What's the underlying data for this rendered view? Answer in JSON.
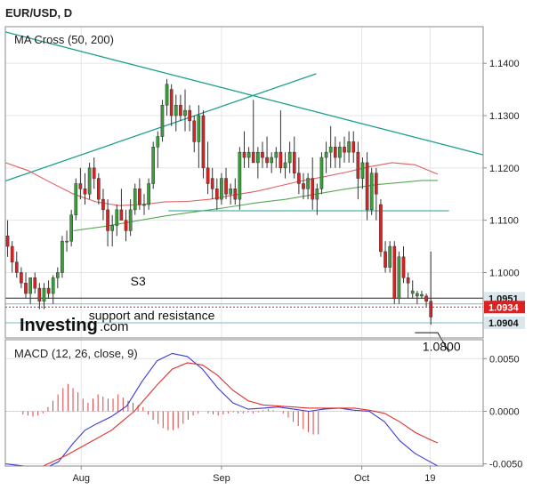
{
  "header": {
    "title": "EUR/USD, D"
  },
  "brand": {
    "name": "Investing",
    "suffix": ".com"
  },
  "colors": {
    "up": "#3a9e3a",
    "down": "#dd2020",
    "ma50": "#e06060",
    "ma200": "#55a855",
    "trend": "#20a090",
    "macd": "#3b3bd6",
    "signal": "#e03030",
    "hist": "#e04040"
  },
  "chart_data": [
    {
      "type": "candlestick",
      "title": "MA Cross (50, 200)",
      "ylim": [
        1.0875,
        1.147
      ],
      "yticks": [
        "1.1400",
        "1.1300",
        "1.1200",
        "1.1100",
        "1.1000"
      ],
      "xlim": [
        0,
        126
      ],
      "xticks": [
        {
          "label": "Aug",
          "x": 20
        },
        {
          "label": "Sep",
          "x": 57
        },
        {
          "label": "Oct",
          "x": 94
        },
        {
          "label": "19",
          "x": 112
        }
      ],
      "grid": true,
      "candles": [
        [
          1.107,
          1.11,
          1.103,
          1.105
        ],
        [
          1.105,
          1.106,
          1.1,
          1.102
        ],
        [
          1.102,
          1.104,
          1.099,
          1.1
        ],
        [
          1.1,
          1.101,
          1.097,
          1.098
        ],
        [
          1.098,
          1.1,
          1.095,
          1.096
        ],
        [
          1.096,
          1.099,
          1.094,
          1.099
        ],
        [
          1.099,
          1.1,
          1.096,
          1.097
        ],
        [
          1.097,
          1.098,
          1.093,
          1.0945
        ],
        [
          1.0945,
          1.098,
          1.093,
          1.097
        ],
        [
          1.097,
          1.0985,
          1.095,
          1.096
        ],
        [
          1.096,
          1.0995,
          1.094,
          1.099
        ],
        [
          1.099,
          1.101,
          1.097,
          1.1
        ],
        [
          1.1,
          1.107,
          1.099,
          1.106
        ],
        [
          1.106,
          1.108,
          1.104,
          1.106
        ],
        [
          1.106,
          1.112,
          1.105,
          1.111
        ],
        [
          1.111,
          1.118,
          1.11,
          1.117
        ],
        [
          1.117,
          1.12,
          1.114,
          1.116
        ],
        [
          1.116,
          1.119,
          1.113,
          1.115
        ],
        [
          1.115,
          1.121,
          1.114,
          1.12
        ],
        [
          1.12,
          1.122,
          1.116,
          1.118
        ],
        [
          1.118,
          1.119,
          1.113,
          1.114
        ],
        [
          1.114,
          1.116,
          1.11,
          1.112
        ],
        [
          1.112,
          1.114,
          1.105,
          1.108
        ],
        [
          1.108,
          1.111,
          1.105,
          1.109
        ],
        [
          1.109,
          1.113,
          1.107,
          1.112
        ],
        [
          1.112,
          1.116,
          1.11,
          1.11
        ],
        [
          1.11,
          1.112,
          1.106,
          1.108
        ],
        [
          1.108,
          1.114,
          1.107,
          1.112
        ],
        [
          1.112,
          1.117,
          1.111,
          1.116
        ],
        [
          1.116,
          1.118,
          1.112,
          1.113
        ],
        [
          1.113,
          1.115,
          1.111,
          1.113
        ],
        [
          1.113,
          1.118,
          1.112,
          1.117
        ],
        [
          1.117,
          1.125,
          1.116,
          1.124
        ],
        [
          1.124,
          1.127,
          1.12,
          1.126
        ],
        [
          1.126,
          1.133,
          1.125,
          1.132
        ],
        [
          1.132,
          1.137,
          1.13,
          1.136
        ],
        [
          1.135,
          1.136,
          1.128,
          1.13
        ],
        [
          1.13,
          1.134,
          1.127,
          1.132
        ],
        [
          1.132,
          1.134,
          1.129,
          1.13
        ],
        [
          1.13,
          1.135,
          1.127,
          1.131
        ],
        [
          1.131,
          1.132,
          1.127,
          1.129
        ],
        [
          1.129,
          1.13,
          1.123,
          1.125
        ],
        [
          1.125,
          1.132,
          1.12,
          1.13
        ],
        [
          1.13,
          1.131,
          1.118,
          1.12
        ],
        [
          1.12,
          1.125,
          1.115,
          1.117
        ],
        [
          1.118,
          1.12,
          1.114,
          1.116
        ],
        [
          1.116,
          1.118,
          1.112,
          1.114
        ],
        [
          1.114,
          1.119,
          1.113,
          1.118
        ],
        [
          1.118,
          1.12,
          1.114,
          1.115
        ],
        [
          1.115,
          1.117,
          1.113,
          1.116
        ],
        [
          1.116,
          1.118,
          1.113,
          1.114
        ],
        [
          1.114,
          1.124,
          1.112,
          1.123
        ],
        [
          1.123,
          1.127,
          1.12,
          1.122
        ],
        [
          1.122,
          1.124,
          1.12,
          1.123
        ],
        [
          1.123,
          1.133,
          1.121,
          1.121
        ],
        [
          1.121,
          1.124,
          1.118,
          1.123
        ],
        [
          1.123,
          1.125,
          1.12,
          1.122
        ],
        [
          1.122,
          1.126,
          1.12,
          1.121
        ],
        [
          1.121,
          1.123,
          1.119,
          1.122
        ],
        [
          1.122,
          1.124,
          1.12,
          1.123
        ],
        [
          1.123,
          1.131,
          1.119,
          1.12
        ],
        [
          1.12,
          1.123,
          1.118,
          1.121
        ],
        [
          1.121,
          1.125,
          1.119,
          1.123
        ],
        [
          1.123,
          1.126,
          1.118,
          1.119
        ],
        [
          1.119,
          1.122,
          1.115,
          1.117
        ],
        [
          1.117,
          1.119,
          1.114,
          1.116
        ],
        [
          1.116,
          1.119,
          1.114,
          1.118
        ],
        [
          1.118,
          1.122,
          1.112,
          1.114
        ],
        [
          1.114,
          1.117,
          1.111,
          1.116
        ],
        [
          1.116,
          1.123,
          1.115,
          1.122
        ],
        [
          1.122,
          1.125,
          1.119,
          1.123
        ],
        [
          1.123,
          1.128,
          1.12,
          1.124
        ],
        [
          1.124,
          1.126,
          1.12,
          1.122
        ],
        [
          1.122,
          1.125,
          1.12,
          1.124
        ],
        [
          1.124,
          1.126,
          1.121,
          1.123
        ],
        [
          1.123,
          1.127,
          1.121,
          1.125
        ],
        [
          1.125,
          1.127,
          1.121,
          1.123
        ],
        [
          1.123,
          1.125,
          1.114,
          1.118
        ],
        [
          1.118,
          1.122,
          1.116,
          1.121
        ],
        [
          1.121,
          1.123,
          1.11,
          1.112
        ],
        [
          1.112,
          1.12,
          1.111,
          1.119
        ],
        [
          1.119,
          1.12,
          1.11,
          1.115
        ],
        [
          1.113,
          1.114,
          1.103,
          1.104
        ],
        [
          1.104,
          1.106,
          1.1,
          1.101
        ],
        [
          1.101,
          1.106,
          1.1,
          1.105
        ],
        [
          1.105,
          1.106,
          1.094,
          1.095
        ],
        [
          1.095,
          1.104,
          1.094,
          1.103
        ],
        [
          1.103,
          1.105,
          1.098,
          1.099
        ],
        [
          1.099,
          1.1,
          1.095,
          1.098
        ],
        [
          1.096,
          1.0985,
          1.095,
          1.0965
        ],
        [
          1.0955,
          1.0965,
          1.094,
          1.096
        ],
        [
          1.0955,
          1.0965,
          1.095,
          1.0958
        ],
        [
          1.0955,
          1.096,
          1.0935,
          1.0945
        ],
        [
          1.0945,
          1.104,
          1.09,
          1.0915
        ]
      ],
      "candle_x_start": 0,
      "candle_x_step": 1.2,
      "ma50": [
        [
          0,
          1.121
        ],
        [
          6,
          1.1195
        ],
        [
          12,
          1.1172
        ],
        [
          18,
          1.115
        ],
        [
          24,
          1.1135
        ],
        [
          30,
          1.1128
        ],
        [
          36,
          1.113
        ],
        [
          42,
          1.1135
        ],
        [
          48,
          1.1136
        ],
        [
          54,
          1.114
        ],
        [
          60,
          1.1148
        ],
        [
          66,
          1.1155
        ],
        [
          72,
          1.1165
        ],
        [
          78,
          1.1175
        ],
        [
          84,
          1.1183
        ],
        [
          90,
          1.1192
        ],
        [
          96,
          1.1202
        ],
        [
          102,
          1.121
        ],
        [
          108,
          1.1206
        ],
        [
          114,
          1.1188
        ]
      ],
      "ma200": [
        [
          18,
          1.108
        ],
        [
          26,
          1.1088
        ],
        [
          34,
          1.1098
        ],
        [
          42,
          1.1108
        ],
        [
          50,
          1.1116
        ],
        [
          58,
          1.1124
        ],
        [
          66,
          1.1133
        ],
        [
          74,
          1.114
        ],
        [
          82,
          1.115
        ],
        [
          90,
          1.116
        ],
        [
          98,
          1.1168
        ],
        [
          104,
          1.1172
        ],
        [
          110,
          1.1176
        ],
        [
          114,
          1.1176
        ]
      ],
      "trendlines": [
        [
          [
            0,
            1.146
          ],
          [
            126,
            1.1225
          ]
        ],
        [
          [
            0,
            1.1175
          ],
          [
            82,
            1.138
          ]
        ]
      ],
      "hlines": [
        {
          "y": 1.1118,
          "x0": 43,
          "x1": 117,
          "color": "#20a090",
          "dash": ""
        },
        {
          "y": 1.0951,
          "x0": 0,
          "x1": 126,
          "color": "#222222",
          "dash": ""
        },
        {
          "y": 1.094,
          "x0": 0,
          "x1": 126,
          "color": "#7ab8c8",
          "dash": ""
        },
        {
          "y": 1.0934,
          "x0": 0,
          "x1": 126,
          "color": "#cc2020",
          "dash": "2,2"
        },
        {
          "y": 1.0904,
          "x0": 0,
          "x1": 126,
          "color": "#7ab8c8",
          "dash": ""
        }
      ],
      "price_tags": [
        {
          "value": "1.0951",
          "bg": "#dbe7ee",
          "fg": "#111111"
        },
        {
          "value": "1.0934",
          "bg": "#dd2020",
          "fg": "#ffffff"
        },
        {
          "value": "1.0904",
          "bg": "#dbe7ee",
          "fg": "#111111"
        }
      ],
      "annotations": [
        {
          "text": "S3",
          "x": 33,
          "y": 1.0975
        },
        {
          "text": "support and resistance",
          "x": 22,
          "y": 1.091
        },
        {
          "text": "1.0800",
          "x": 110,
          "y": 1.085
        }
      ],
      "pointer": [
        [
          108,
          1.0885
        ],
        [
          114,
          1.0885
        ],
        [
          117,
          1.0848
        ]
      ]
    },
    {
      "type": "line",
      "title": "MACD (12, 26, close, 9)",
      "ylim": [
        -0.0052,
        0.0068
      ],
      "yticks": [
        "0.0050",
        "0.0000",
        "-0.0050"
      ],
      "xlim": [
        0,
        126
      ],
      "grid": true,
      "series": [
        {
          "name": "MACD",
          "points": [
            [
              0,
              -0.005
            ],
            [
              5,
              -0.0052
            ],
            [
              10,
              -0.0055
            ],
            [
              14,
              -0.0048
            ],
            [
              18,
              -0.003
            ],
            [
              21,
              -0.0018
            ],
            [
              24,
              -0.0012
            ],
            [
              28,
              -0.0005
            ],
            [
              32,
              0.0005
            ],
            [
              36,
              0.0028
            ],
            [
              40,
              0.0048
            ],
            [
              44,
              0.0055
            ],
            [
              48,
              0.0052
            ],
            [
              52,
              0.004
            ],
            [
              56,
              0.0022
            ],
            [
              60,
              0.0008
            ],
            [
              64,
              0.0002
            ],
            [
              68,
              0.0003
            ],
            [
              72,
              0.0004
            ],
            [
              76,
              0.0002
            ],
            [
              80,
              0.0
            ],
            [
              84,
              0.0002
            ],
            [
              88,
              0.0003
            ],
            [
              92,
              0.0001
            ],
            [
              96,
              0.0
            ],
            [
              100,
              -0.001
            ],
            [
              104,
              -0.0028
            ],
            [
              108,
              -0.004
            ],
            [
              112,
              -0.0048
            ],
            [
              114,
              -0.0052
            ]
          ]
        },
        {
          "name": "Signal",
          "points": [
            [
              10,
              -0.0052
            ],
            [
              16,
              -0.0042
            ],
            [
              22,
              -0.003
            ],
            [
              28,
              -0.0018
            ],
            [
              34,
              0.0
            ],
            [
              40,
              0.0025
            ],
            [
              44,
              0.004
            ],
            [
              48,
              0.0046
            ],
            [
              52,
              0.0044
            ],
            [
              56,
              0.0034
            ],
            [
              60,
              0.002
            ],
            [
              64,
              0.001
            ],
            [
              68,
              0.0006
            ],
            [
              72,
              0.0005
            ],
            [
              76,
              0.0004
            ],
            [
              80,
              0.0003
            ],
            [
              84,
              0.0003
            ],
            [
              88,
              0.0003
            ],
            [
              92,
              0.0003
            ],
            [
              96,
              0.0001
            ],
            [
              100,
              -0.0002
            ],
            [
              104,
              -0.001
            ],
            [
              108,
              -0.002
            ],
            [
              112,
              -0.0027
            ],
            [
              114,
              -0.003
            ]
          ]
        }
      ],
      "histogram": [
        0,
        0,
        -0.0003,
        -0.0004,
        -0.0005,
        -0.0004,
        -0.0002,
        0.0004,
        0.001,
        0.0016,
        0.0022,
        0.0026,
        0.0022,
        0.0018,
        0.0012,
        0.0008,
        0.0012,
        0.0016,
        0.0014,
        0.0012,
        0.0012,
        0.0016,
        0.0013,
        0.001,
        0.0008,
        0.0006,
        0.0004,
        -0.0003,
        -0.0008,
        -0.0012,
        -0.0016,
        -0.0018,
        -0.0018,
        -0.0016,
        -0.0012,
        -0.0008,
        -0.0004,
        -0.0002,
        0.0,
        -0.0002,
        -0.0003,
        -0.0004,
        -0.0003,
        -0.0002,
        -0.0001,
        -0.0002,
        -0.0002,
        -0.0001,
        -0.0002,
        -0.0001,
        0.0001,
        0.0002,
        0.0001,
        0.0,
        -0.0002,
        -0.0006,
        -0.001,
        -0.0014,
        -0.0017,
        -0.002,
        -0.0022,
        -0.0022
      ],
      "histogram_x_start": 36,
      "histogram_x_step": 1.32
    }
  ]
}
